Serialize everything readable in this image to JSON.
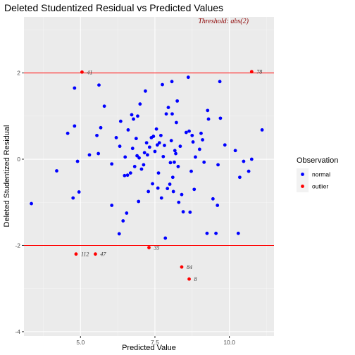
{
  "chart_data": {
    "type": "scatter",
    "title": "Deleted Studentized Residual vs Predicted Values",
    "xlabel": "Predicted Value",
    "ylabel": "Deleted Studentized Residual",
    "xlim": [
      3.1,
      11.5
    ],
    "ylim": [
      -4.1,
      3.3
    ],
    "x_ticks": [
      5.0,
      7.5,
      10.0
    ],
    "x_tick_labels": [
      "5.0",
      "7.5",
      "10.0"
    ],
    "y_ticks": [
      -4,
      -2,
      0,
      2
    ],
    "y_tick_labels": [
      "-4",
      "-2",
      "0",
      "2"
    ],
    "grid": true,
    "threshold": 2,
    "threshold_color": "#ff0000",
    "annotation": {
      "text": "Threshold: abs(2)",
      "color": "#8b0000",
      "x": 9.8,
      "y": 3.2
    },
    "legend": {
      "title": "Observation",
      "position": "right",
      "entries": [
        {
          "label": "normal",
          "color": "#0000ff"
        },
        {
          "label": "outlier",
          "color": "#ff0000"
        }
      ]
    },
    "colors": {
      "normal": "#0000ff",
      "outlier": "#ff0000",
      "panel": "#ebebeb",
      "grid_major": "#ffffff",
      "grid_minor": "#f5f5f5"
    },
    "series": [
      {
        "name": "normal",
        "points": [
          [
            3.35,
            -1.03
          ],
          [
            4.2,
            -0.27
          ],
          [
            4.57,
            0.6
          ],
          [
            4.75,
            -0.9
          ],
          [
            4.8,
            1.65
          ],
          [
            4.8,
            0.77
          ],
          [
            4.9,
            -0.05
          ],
          [
            4.95,
            -0.76
          ],
          [
            5.3,
            0.1
          ],
          [
            5.55,
            0.55
          ],
          [
            5.6,
            0.13
          ],
          [
            5.62,
            1.72
          ],
          [
            5.68,
            0.73
          ],
          [
            5.8,
            1.23
          ],
          [
            6.05,
            -1.07
          ],
          [
            6.05,
            -0.11
          ],
          [
            6.2,
            0.5
          ],
          [
            6.3,
            -1.73
          ],
          [
            6.32,
            0.3
          ],
          [
            6.35,
            0.88
          ],
          [
            6.43,
            -1.43
          ],
          [
            6.48,
            -0.38
          ],
          [
            6.5,
            0.05
          ],
          [
            6.55,
            -1.25
          ],
          [
            6.58,
            -0.37
          ],
          [
            6.6,
            0.68
          ],
          [
            6.68,
            -0.32
          ],
          [
            6.72,
            1.03
          ],
          [
            6.75,
            0.25
          ],
          [
            6.78,
            0.93
          ],
          [
            6.82,
            -0.17
          ],
          [
            6.87,
            0.48
          ],
          [
            6.9,
            0.08
          ],
          [
            6.92,
            1.0
          ],
          [
            6.95,
            -0.98
          ],
          [
            6.97,
            0.03
          ],
          [
            7.0,
            1.28
          ],
          [
            7.05,
            -0.23
          ],
          [
            7.12,
            -0.13
          ],
          [
            7.15,
            0.15
          ],
          [
            7.18,
            1.58
          ],
          [
            7.22,
            0.38
          ],
          [
            7.25,
            0.1
          ],
          [
            7.28,
            -0.75
          ],
          [
            7.32,
            0.28
          ],
          [
            7.38,
            0.5
          ],
          [
            7.42,
            -0.57
          ],
          [
            7.45,
            0.53
          ],
          [
            7.5,
            0.18
          ],
          [
            7.55,
            0.7
          ],
          [
            7.58,
            0.33
          ],
          [
            7.6,
            -0.67
          ],
          [
            7.62,
            -0.32
          ],
          [
            7.65,
            0.38
          ],
          [
            7.7,
            0.55
          ],
          [
            7.72,
            -0.9
          ],
          [
            7.75,
            1.73
          ],
          [
            7.78,
            0.06
          ],
          [
            7.82,
            0.32
          ],
          [
            7.85,
            -1.83
          ],
          [
            7.88,
            1.05
          ],
          [
            7.92,
            -0.68
          ],
          [
            7.95,
            1.2
          ],
          [
            8.0,
            -0.58
          ],
          [
            8.02,
            -0.08
          ],
          [
            8.05,
            0.43
          ],
          [
            8.07,
            1.8
          ],
          [
            8.08,
            1.05
          ],
          [
            8.1,
            -0.42
          ],
          [
            8.12,
            -0.75
          ],
          [
            8.15,
            -0.07
          ],
          [
            8.17,
            0.2
          ],
          [
            8.2,
            0.13
          ],
          [
            8.22,
            0.85
          ],
          [
            8.25,
            1.35
          ],
          [
            8.28,
            -0.17
          ],
          [
            8.3,
            -1.0
          ],
          [
            8.35,
            0.3
          ],
          [
            8.4,
            -0.82
          ],
          [
            8.45,
            -1.22
          ],
          [
            8.55,
            0.62
          ],
          [
            8.62,
            1.9
          ],
          [
            8.65,
            0.65
          ],
          [
            8.68,
            -1.23
          ],
          [
            8.72,
            -0.28
          ],
          [
            8.75,
            0.55
          ],
          [
            8.78,
            0.4
          ],
          [
            8.82,
            -0.7
          ],
          [
            8.86,
            0.05
          ],
          [
            9.0,
            0.23
          ],
          [
            9.05,
            0.6
          ],
          [
            9.1,
            0.45
          ],
          [
            9.15,
            -0.07
          ],
          [
            9.25,
            -1.72
          ],
          [
            9.27,
            1.13
          ],
          [
            9.3,
            0.93
          ],
          [
            9.45,
            -0.92
          ],
          [
            9.55,
            -1.72
          ],
          [
            9.6,
            -1.07
          ],
          [
            9.62,
            -0.13
          ],
          [
            9.68,
            1.8
          ],
          [
            9.7,
            0.95
          ],
          [
            9.85,
            0.33
          ],
          [
            10.2,
            0.2
          ],
          [
            10.3,
            -1.72
          ],
          [
            10.35,
            -0.42
          ],
          [
            10.48,
            -0.05
          ],
          [
            10.65,
            -0.28
          ],
          [
            10.75,
            0.0
          ],
          [
            11.1,
            0.68
          ]
        ]
      },
      {
        "name": "outlier",
        "points": [
          [
            5.05,
            2.02,
            "41"
          ],
          [
            10.75,
            2.03,
            "78"
          ],
          [
            7.3,
            -2.05,
            "35"
          ],
          [
            4.85,
            -2.2,
            "112"
          ],
          [
            5.5,
            -2.2,
            "47"
          ],
          [
            8.4,
            -2.5,
            "84"
          ],
          [
            8.65,
            -2.78,
            "8"
          ]
        ]
      }
    ]
  }
}
